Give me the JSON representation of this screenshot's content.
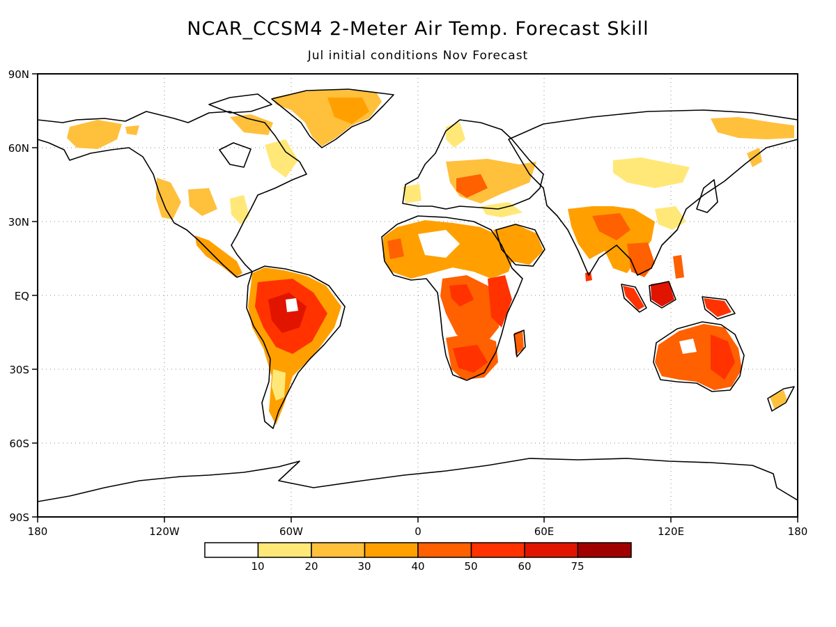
{
  "title": "NCAR_CCSM4 2-Meter Air Temp. Forecast Skill",
  "subtitle": "Jul initial conditions   Nov Forecast",
  "axes": {
    "lat_labels": [
      "90N",
      "60N",
      "30N",
      "EQ",
      "30S",
      "60S",
      "90S"
    ],
    "lon_labels": [
      "180",
      "120W",
      "60W",
      "0",
      "60E",
      "120E",
      "180"
    ]
  },
  "colorbar": {
    "labels": [
      "10",
      "20",
      "30",
      "40",
      "50",
      "60",
      "75"
    ],
    "colors": [
      "#ffffff",
      "#ffe878",
      "#ffc03c",
      "#ffa000",
      "#ff6000",
      "#ff3200",
      "#e11400",
      "#a00000"
    ]
  }
}
